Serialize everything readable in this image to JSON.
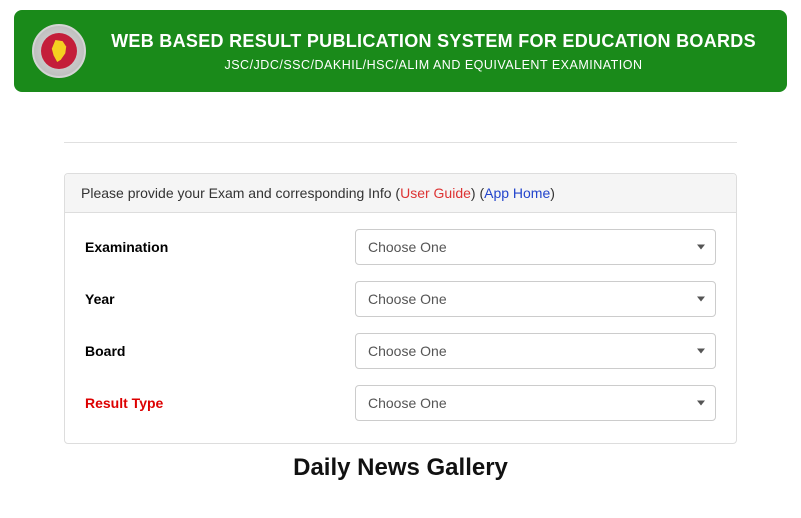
{
  "header": {
    "title": "WEB BASED RESULT PUBLICATION SYSTEM FOR EDUCATION BOARDS",
    "subtitle": "JSC/JDC/SSC/DAKHIL/HSC/ALIM AND EQUIVALENT EXAMINATION",
    "bg_color": "#1a8a1a",
    "text_color": "#ffffff"
  },
  "panel": {
    "instruction_prefix": "Please provide your Exam and corresponding Info (",
    "user_guide_label": "User Guide",
    "mid_text": ") (",
    "app_home_label": "App Home",
    "suffix": ")",
    "header_bg": "#f5f5f5"
  },
  "form": {
    "fields": [
      {
        "label": "Examination",
        "placeholder": "Choose One",
        "required": false
      },
      {
        "label": "Year",
        "placeholder": "Choose One",
        "required": false
      },
      {
        "label": "Board",
        "placeholder": "Choose One",
        "required": false
      },
      {
        "label": "Result Type",
        "placeholder": "Choose One",
        "required": true
      }
    ]
  },
  "footer": {
    "text": "Daily News Gallery"
  },
  "colors": {
    "link_red": "#dd3333",
    "link_blue": "#2244cc",
    "required_label": "#dd0000",
    "border": "#dddddd"
  }
}
